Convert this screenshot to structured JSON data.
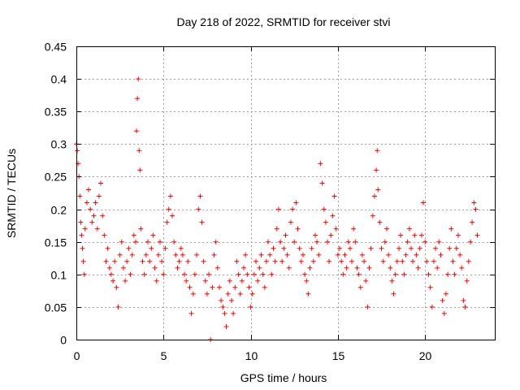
{
  "chart_data": {
    "type": "scatter",
    "title": "Day 218 of 2022, SRMTID for receiver stvi",
    "xlabel": "GPS time / hours",
    "ylabel": "SRMTID / TECUs",
    "xlim": [
      0,
      24
    ],
    "ylim": [
      0,
      0.45
    ],
    "x_ticks": [
      0,
      5,
      10,
      15,
      20
    ],
    "x_tick_labels": [
      "0",
      "5",
      "10",
      "15",
      "20"
    ],
    "y_ticks": [
      0,
      0.05,
      0.1,
      0.15,
      0.2,
      0.25,
      0.3,
      0.35,
      0.4,
      0.45
    ],
    "y_tick_labels": [
      "0",
      "0.05",
      "0.1",
      "0.15",
      "0.2",
      "0.25",
      "0.3",
      "0.35",
      "0.4",
      "0.45"
    ],
    "grid": true,
    "marker": "+",
    "color": "#ff0000",
    "series": [
      {
        "name": "SRMTID",
        "points": [
          [
            0.0,
            0.3
          ],
          [
            0.05,
            0.29
          ],
          [
            0.1,
            0.27
          ],
          [
            0.15,
            0.25
          ],
          [
            0.2,
            0.22
          ],
          [
            0.25,
            0.18
          ],
          [
            0.3,
            0.16
          ],
          [
            0.35,
            0.14
          ],
          [
            0.4,
            0.12
          ],
          [
            0.45,
            0.1
          ],
          [
            0.5,
            0.17
          ],
          [
            0.6,
            0.21
          ],
          [
            0.7,
            0.23
          ],
          [
            0.8,
            0.2
          ],
          [
            0.9,
            0.18
          ],
          [
            1.0,
            0.19
          ],
          [
            1.1,
            0.21
          ],
          [
            1.2,
            0.17
          ],
          [
            1.3,
            0.22
          ],
          [
            1.4,
            0.24
          ],
          [
            1.5,
            0.19
          ],
          [
            1.6,
            0.16
          ],
          [
            1.7,
            0.12
          ],
          [
            1.8,
            0.14
          ],
          [
            1.9,
            0.11
          ],
          [
            2.0,
            0.1
          ],
          [
            2.1,
            0.09
          ],
          [
            2.2,
            0.12
          ],
          [
            2.3,
            0.08
          ],
          [
            2.4,
            0.05
          ],
          [
            2.5,
            0.13
          ],
          [
            2.6,
            0.15
          ],
          [
            2.7,
            0.11
          ],
          [
            2.8,
            0.09
          ],
          [
            2.9,
            0.12
          ],
          [
            3.0,
            0.14
          ],
          [
            3.1,
            0.1
          ],
          [
            3.2,
            0.13
          ],
          [
            3.3,
            0.16
          ],
          [
            3.4,
            0.15
          ],
          [
            3.45,
            0.32
          ],
          [
            3.5,
            0.37
          ],
          [
            3.55,
            0.4
          ],
          [
            3.6,
            0.29
          ],
          [
            3.65,
            0.26
          ],
          [
            3.7,
            0.17
          ],
          [
            3.8,
            0.12
          ],
          [
            3.9,
            0.1
          ],
          [
            4.0,
            0.13
          ],
          [
            4.1,
            0.15
          ],
          [
            4.2,
            0.12
          ],
          [
            4.3,
            0.14
          ],
          [
            4.4,
            0.16
          ],
          [
            4.5,
            0.11
          ],
          [
            4.6,
            0.09
          ],
          [
            4.7,
            0.13
          ],
          [
            4.8,
            0.15
          ],
          [
            4.9,
            0.12
          ],
          [
            5.0,
            0.1
          ],
          [
            5.1,
            0.14
          ],
          [
            5.2,
            0.18
          ],
          [
            5.3,
            0.2
          ],
          [
            5.4,
            0.22
          ],
          [
            5.5,
            0.19
          ],
          [
            5.6,
            0.15
          ],
          [
            5.7,
            0.13
          ],
          [
            5.8,
            0.11
          ],
          [
            5.9,
            0.12
          ],
          [
            6.0,
            0.14
          ],
          [
            6.1,
            0.13
          ],
          [
            6.2,
            0.1
          ],
          [
            6.3,
            0.09
          ],
          [
            6.4,
            0.12
          ],
          [
            6.5,
            0.08
          ],
          [
            6.6,
            0.04
          ],
          [
            6.7,
            0.07
          ],
          [
            6.8,
            0.1
          ],
          [
            6.9,
            0.13
          ],
          [
            7.0,
            0.2
          ],
          [
            7.1,
            0.22
          ],
          [
            7.2,
            0.18
          ],
          [
            7.3,
            0.12
          ],
          [
            7.4,
            0.09
          ],
          [
            7.5,
            0.07
          ],
          [
            7.6,
            0.1
          ],
          [
            7.7,
            0.0
          ],
          [
            7.8,
            0.08
          ],
          [
            7.9,
            0.13
          ],
          [
            8.0,
            0.15
          ],
          [
            8.1,
            0.11
          ],
          [
            8.2,
            0.08
          ],
          [
            8.3,
            0.06
          ],
          [
            8.4,
            0.05
          ],
          [
            8.5,
            0.04
          ],
          [
            8.6,
            0.02
          ],
          [
            8.7,
            0.07
          ],
          [
            8.8,
            0.09
          ],
          [
            8.9,
            0.06
          ],
          [
            9.0,
            0.04
          ],
          [
            9.1,
            0.08
          ],
          [
            9.2,
            0.12
          ],
          [
            9.3,
            0.1
          ],
          [
            9.4,
            0.07
          ],
          [
            9.5,
            0.09
          ],
          [
            9.6,
            0.11
          ],
          [
            9.7,
            0.13
          ],
          [
            9.8,
            0.1
          ],
          [
            9.9,
            0.08
          ],
          [
            10.0,
            0.05
          ],
          [
            10.1,
            0.07
          ],
          [
            10.2,
            0.1
          ],
          [
            10.3,
            0.12
          ],
          [
            10.4,
            0.09
          ],
          [
            10.5,
            0.11
          ],
          [
            10.6,
            0.13
          ],
          [
            10.7,
            0.1
          ],
          [
            10.8,
            0.08
          ],
          [
            10.9,
            0.12
          ],
          [
            11.0,
            0.15
          ],
          [
            11.1,
            0.13
          ],
          [
            11.2,
            0.1
          ],
          [
            11.3,
            0.14
          ],
          [
            11.4,
            0.12
          ],
          [
            11.5,
            0.17
          ],
          [
            11.6,
            0.2
          ],
          [
            11.7,
            0.15
          ],
          [
            11.8,
            0.12
          ],
          [
            11.9,
            0.14
          ],
          [
            12.0,
            0.16
          ],
          [
            12.1,
            0.13
          ],
          [
            12.2,
            0.11
          ],
          [
            12.3,
            0.18
          ],
          [
            12.4,
            0.2
          ],
          [
            12.5,
            0.15
          ],
          [
            12.6,
            0.21
          ],
          [
            12.7,
            0.17
          ],
          [
            12.8,
            0.14
          ],
          [
            12.9,
            0.12
          ],
          [
            13.0,
            0.13
          ],
          [
            13.1,
            0.1
          ],
          [
            13.2,
            0.09
          ],
          [
            13.3,
            0.07
          ],
          [
            13.4,
            0.11
          ],
          [
            13.5,
            0.14
          ],
          [
            13.6,
            0.12
          ],
          [
            13.7,
            0.16
          ],
          [
            13.8,
            0.15
          ],
          [
            13.9,
            0.13
          ],
          [
            14.0,
            0.27
          ],
          [
            14.1,
            0.24
          ],
          [
            14.2,
            0.2
          ],
          [
            14.3,
            0.18
          ],
          [
            14.4,
            0.15
          ],
          [
            14.5,
            0.12
          ],
          [
            14.6,
            0.16
          ],
          [
            14.7,
            0.19
          ],
          [
            14.8,
            0.22
          ],
          [
            14.9,
            0.17
          ],
          [
            15.0,
            0.13
          ],
          [
            15.1,
            0.14
          ],
          [
            15.2,
            0.12
          ],
          [
            15.3,
            0.1
          ],
          [
            15.4,
            0.13
          ],
          [
            15.5,
            0.11
          ],
          [
            15.6,
            0.15
          ],
          [
            15.7,
            0.14
          ],
          [
            15.8,
            0.12
          ],
          [
            15.9,
            0.17
          ],
          [
            16.0,
            0.15
          ],
          [
            16.1,
            0.11
          ],
          [
            16.2,
            0.1
          ],
          [
            16.3,
            0.08
          ],
          [
            16.4,
            0.13
          ],
          [
            16.5,
            0.12
          ],
          [
            16.6,
            0.09
          ],
          [
            16.7,
            0.05
          ],
          [
            16.8,
            0.11
          ],
          [
            16.9,
            0.14
          ],
          [
            17.0,
            0.19
          ],
          [
            17.1,
            0.22
          ],
          [
            17.2,
            0.26
          ],
          [
            17.25,
            0.29
          ],
          [
            17.3,
            0.23
          ],
          [
            17.4,
            0.18
          ],
          [
            17.5,
            0.14
          ],
          [
            17.6,
            0.12
          ],
          [
            17.7,
            0.15
          ],
          [
            17.8,
            0.17
          ],
          [
            17.9,
            0.13
          ],
          [
            18.0,
            0.11
          ],
          [
            18.1,
            0.09
          ],
          [
            18.2,
            0.07
          ],
          [
            18.3,
            0.1
          ],
          [
            18.4,
            0.12
          ],
          [
            18.5,
            0.14
          ],
          [
            18.6,
            0.16
          ],
          [
            18.7,
            0.12
          ],
          [
            18.8,
            0.1
          ],
          [
            18.9,
            0.13
          ],
          [
            19.0,
            0.15
          ],
          [
            19.1,
            0.17
          ],
          [
            19.2,
            0.14
          ],
          [
            19.3,
            0.12
          ],
          [
            19.4,
            0.16
          ],
          [
            19.5,
            0.13
          ],
          [
            19.6,
            0.11
          ],
          [
            19.7,
            0.14
          ],
          [
            19.8,
            0.16
          ],
          [
            19.9,
            0.21
          ],
          [
            20.0,
            0.15
          ],
          [
            20.1,
            0.12
          ],
          [
            20.2,
            0.1
          ],
          [
            20.3,
            0.08
          ],
          [
            20.4,
            0.05
          ],
          [
            20.5,
            0.12
          ],
          [
            20.6,
            0.14
          ],
          [
            20.7,
            0.11
          ],
          [
            20.8,
            0.15
          ],
          [
            20.9,
            0.13
          ],
          [
            21.0,
            0.06
          ],
          [
            21.1,
            0.04
          ],
          [
            21.2,
            0.07
          ],
          [
            21.3,
            0.1
          ],
          [
            21.4,
            0.14
          ],
          [
            21.5,
            0.17
          ],
          [
            21.6,
            0.12
          ],
          [
            21.7,
            0.1
          ],
          [
            21.8,
            0.14
          ],
          [
            21.9,
            0.16
          ],
          [
            22.0,
            0.13
          ],
          [
            22.1,
            0.11
          ],
          [
            22.2,
            0.06
          ],
          [
            22.3,
            0.05
          ],
          [
            22.4,
            0.09
          ],
          [
            22.5,
            0.12
          ],
          [
            22.6,
            0.15
          ],
          [
            22.7,
            0.18
          ],
          [
            22.8,
            0.21
          ],
          [
            22.9,
            0.2
          ],
          [
            23.0,
            0.16
          ]
        ]
      }
    ]
  }
}
